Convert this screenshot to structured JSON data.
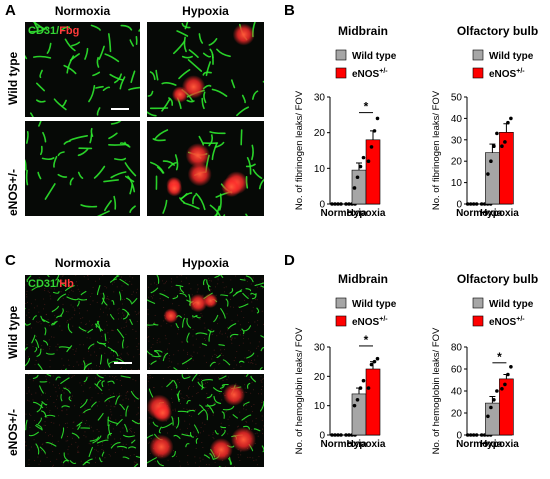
{
  "panels": {
    "A": {
      "letter": "A",
      "stain_green": "CD31",
      "stain_sep": "/",
      "stain_red": "Fbg",
      "columns": [
        "Normoxia",
        "Hypoxia"
      ],
      "rows": [
        "Wild type",
        "eNOS+/-"
      ]
    },
    "C": {
      "letter": "C",
      "stain_green": "CD31",
      "stain_sep": "/",
      "stain_red": "Hb",
      "columns": [
        "Normoxia",
        "Hypoxia"
      ],
      "rows": [
        "Wild type",
        "eNOS+/-"
      ]
    },
    "B": {
      "letter": "B"
    },
    "D": {
      "letter": "D"
    }
  },
  "legend": {
    "wild_type": "Wild type",
    "enos": "eNOS",
    "enos_sup": "+/-"
  },
  "colors": {
    "wild_type": "#a6a6a6",
    "enos": "#ff0000",
    "vessel": "#2ee82e",
    "leak": "#ff2a2a"
  },
  "chart_data": [
    {
      "id": "B-midbrain",
      "type": "bar",
      "title": "Midbrain",
      "ylabel": "No. of fibrinogen leaks/ FOV",
      "categories": [
        "Normoxia",
        "Hypoxia"
      ],
      "ylim": [
        0,
        30
      ],
      "yticks": [
        0,
        10,
        20,
        30
      ],
      "series": [
        {
          "name": "Wild type",
          "values": [
            0,
            9.5
          ],
          "errors": [
            0,
            2
          ],
          "points": [
            [
              0,
              0,
              0,
              0
            ],
            [
              4.5,
              7.5,
              10.5,
              13
            ]
          ]
        },
        {
          "name": "eNOS+/-",
          "values": [
            0,
            18
          ],
          "errors": [
            0,
            2.5
          ],
          "points": [
            [
              0,
              0,
              0,
              0
            ],
            [
              12,
              16,
              20.5,
              24
            ]
          ]
        }
      ],
      "significance": "*"
    },
    {
      "id": "B-olfactory",
      "type": "bar",
      "title": "Olfactory bulb",
      "ylabel": "No. of fibrinogen leaks/ FOV",
      "categories": [
        "Normoxia",
        "Hypoxia"
      ],
      "ylim": [
        0,
        50
      ],
      "yticks": [
        0,
        10,
        20,
        30,
        40,
        50
      ],
      "series": [
        {
          "name": "Wild type",
          "values": [
            0,
            24
          ],
          "errors": [
            0,
            4
          ],
          "points": [
            [
              0,
              0,
              0,
              0
            ],
            [
              14,
              20,
              27,
              33
            ]
          ]
        },
        {
          "name": "eNOS+/-",
          "values": [
            0,
            33.5
          ],
          "errors": [
            0,
            4
          ],
          "points": [
            [
              0,
              0,
              0,
              0
            ],
            [
              27,
              29,
              38,
              40
            ]
          ]
        }
      ],
      "significance": ""
    },
    {
      "id": "D-midbrain",
      "type": "bar",
      "title": "Midbrain",
      "ylabel": "No. of hemoglobin leaks/ FOV",
      "categories": [
        "Normoxia",
        "Hypoxia"
      ],
      "ylim": [
        0,
        30
      ],
      "yticks": [
        0,
        10,
        20,
        30
      ],
      "series": [
        {
          "name": "Wild type",
          "values": [
            0,
            14
          ],
          "errors": [
            0,
            2
          ],
          "points": [
            [
              0,
              0,
              0,
              0
            ],
            [
              10,
              12,
              16,
              18.5
            ]
          ]
        },
        {
          "name": "eNOS+/-",
          "values": [
            0,
            22.5
          ],
          "errors": [
            0,
            2.5
          ],
          "points": [
            [
              0,
              0,
              0,
              0
            ],
            [
              16,
              24,
              25,
              26
            ]
          ]
        }
      ],
      "significance": "*"
    },
    {
      "id": "D-olfactory",
      "type": "bar",
      "title": "Olfactory bulb",
      "ylabel": "No. of hemoglobin leaks/ FOV",
      "categories": [
        "Normoxia",
        "Hypoxia"
      ],
      "ylim": [
        0,
        80
      ],
      "yticks": [
        0,
        20,
        40,
        60,
        80
      ],
      "series": [
        {
          "name": "Wild type",
          "values": [
            0,
            29
          ],
          "errors": [
            0,
            6
          ],
          "points": [
            [
              0,
              0,
              0,
              0
            ],
            [
              17,
              25,
              32,
              40
            ]
          ]
        },
        {
          "name": "eNOS+/-",
          "values": [
            0,
            51
          ],
          "errors": [
            0,
            4
          ],
          "points": [
            [
              0,
              0,
              0,
              0
            ],
            [
              42,
              46,
              55,
              62
            ]
          ]
        }
      ],
      "significance": "*"
    }
  ]
}
